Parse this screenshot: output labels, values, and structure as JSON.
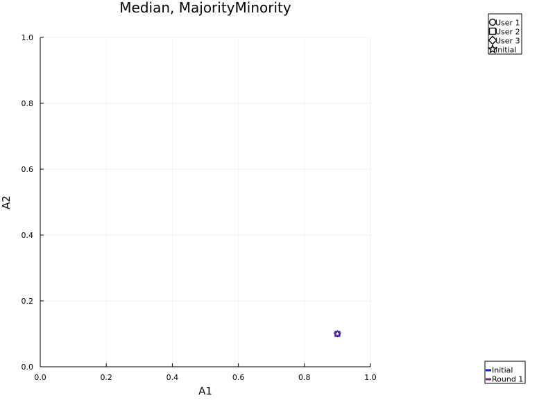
{
  "chart_data": {
    "type": "scatter",
    "title": "Median, MajorityMinority",
    "xlabel": "A1",
    "ylabel": "A2",
    "xlim": [
      0.0,
      1.0
    ],
    "ylim": [
      0.0,
      1.0
    ],
    "xticks": [
      "0.0",
      "0.2",
      "0.4",
      "0.6",
      "0.8",
      "1.0"
    ],
    "yticks": [
      "0.0",
      "0.2",
      "0.4",
      "0.6",
      "0.8",
      "1.0"
    ],
    "grid": true,
    "marker_legend": {
      "placement": "top-right",
      "entries": [
        {
          "name": "User 1",
          "marker": "circle"
        },
        {
          "name": "User 2",
          "marker": "square"
        },
        {
          "name": "User 3",
          "marker": "diamond"
        },
        {
          "name": "Initial",
          "marker": "star"
        }
      ]
    },
    "line_legend": {
      "placement": "bottom-right",
      "entries": [
        {
          "name": "Initial",
          "color": "#1414c8"
        },
        {
          "name": "Round 1",
          "color": "#6e2a82"
        }
      ]
    },
    "points": [
      {
        "x": 0.9,
        "y": 0.1,
        "marker": "circle",
        "color": "#1414c8"
      },
      {
        "x": 0.9,
        "y": 0.1,
        "marker": "square",
        "color": "#1414c8"
      },
      {
        "x": 0.9,
        "y": 0.1,
        "marker": "diamond",
        "color": "#1414c8"
      },
      {
        "x": 0.9,
        "y": 0.1,
        "marker": "star",
        "color": "#6e2a82"
      }
    ]
  }
}
